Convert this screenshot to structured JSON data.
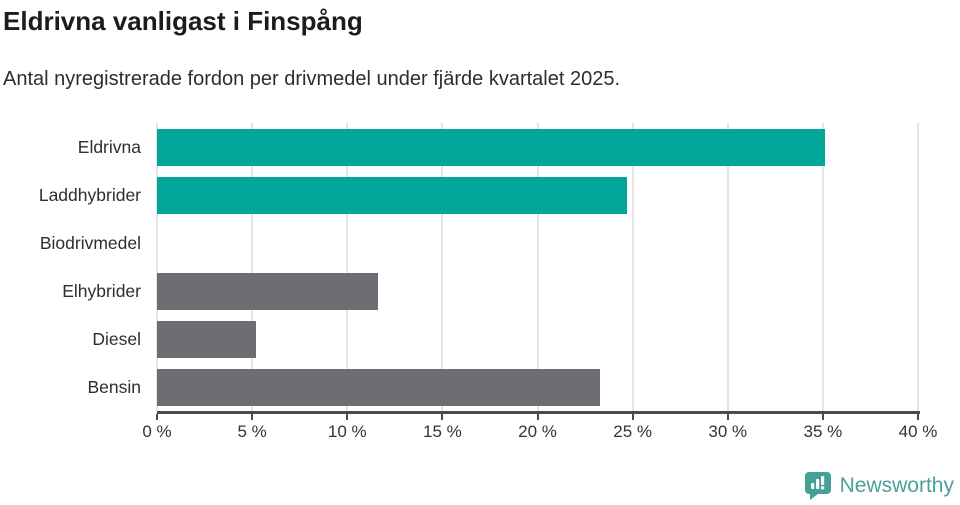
{
  "page": {
    "title": "Eldrivna vanligast i Finspång",
    "subtitle": "Antal nyregistrerade fordon per drivmedel under fjärde kvartalet 2025."
  },
  "chart_data": {
    "type": "bar",
    "orientation": "horizontal",
    "title": "Eldrivna vanligast i Finspång",
    "subtitle": "Antal nyregistrerade fordon per drivmedel under fjärde kvartalet 2025.",
    "categories": [
      "Eldrivna",
      "Laddhybrider",
      "Biodrivmedel",
      "Elhybrider",
      "Diesel",
      "Bensin"
    ],
    "values": [
      35.1,
      24.7,
      0,
      11.6,
      5.2,
      23.3
    ],
    "bar_colors": [
      "#00a69a",
      "#00a69a",
      "#00a69a",
      "#6d6d73",
      "#6d6d73",
      "#6d6d73"
    ],
    "unit": "%",
    "xlabel": "",
    "ylabel": "",
    "xlim": [
      0,
      40
    ],
    "x_tick_step": 5,
    "x_tick_labels": [
      "0 %",
      "5 %",
      "10 %",
      "15 %",
      "20 %",
      "25 %",
      "30 %",
      "35 %",
      "40 %"
    ],
    "grid": "vertical-only",
    "legend": "none",
    "highlight_color": "#00a69a",
    "base_color": "#6d6d73"
  },
  "branding": {
    "name": "Newsworthy",
    "icon": "newsworthy-speech-bubble-bar-chart",
    "color": "#4ba099",
    "icon_color": "#45a098"
  }
}
